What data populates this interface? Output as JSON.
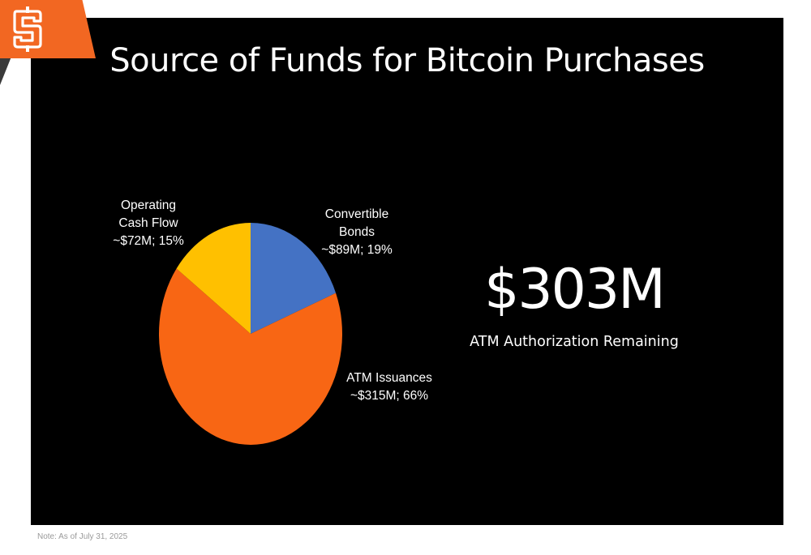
{
  "title": "Source of Funds for Bitcoin Purchases",
  "note": "Note: As of July 31, 2025",
  "highlight": {
    "value": "$303M",
    "caption": "ATM Authorization Remaining"
  },
  "logo": {
    "icon": "s-monogram-logo",
    "color": "#f26722"
  },
  "chart_data": {
    "type": "pie",
    "categories": [
      "Convertible Bonds",
      "ATM Issuances",
      "Operating Cash Flow"
    ],
    "values": [
      19,
      66,
      15
    ],
    "amounts": [
      "~$89M",
      "~$315M",
      "~$72M"
    ],
    "colors": [
      "#4472c4",
      "#f86614",
      "#ffc000"
    ],
    "slice_labels": [
      [
        "Convertible",
        "Bonds",
        "~$89M; 19%"
      ],
      [
        "ATM Issuances",
        "~$315M; 66%"
      ],
      [
        "Operating",
        "Cash Flow",
        "~$72M; 15%"
      ]
    ]
  }
}
